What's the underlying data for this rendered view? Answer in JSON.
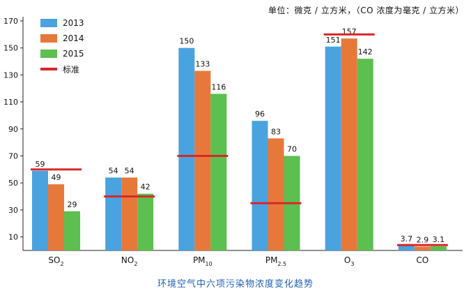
{
  "unit_note": "单位：微克 / 立方米，（CO 浓度为毫克 / 立方米）",
  "caption": "环境空气中六项污染物浓度变化趋势",
  "colors": {
    "2013": "#4aa3df",
    "2014": "#e6793a",
    "2015": "#5cbf4f",
    "standard": "#d9262b",
    "axis": "#222222"
  },
  "chart_data": {
    "type": "bar",
    "categories": [
      {
        "main": "SO",
        "sub": "2"
      },
      {
        "main": "NO",
        "sub": "2"
      },
      {
        "main": "PM",
        "sub": "10"
      },
      {
        "main": "PM",
        "sub": "2.5"
      },
      {
        "main": "O",
        "sub": "3"
      },
      {
        "main": "CO",
        "sub": ""
      }
    ],
    "series": [
      {
        "name": "2013",
        "values": [
          59,
          54,
          150,
          96,
          151,
          3.7
        ],
        "labels": [
          "59",
          "54",
          "150",
          "96",
          "151",
          "3.7"
        ]
      },
      {
        "name": "2014",
        "values": [
          49,
          54,
          133,
          83,
          157,
          2.9
        ],
        "labels": [
          "49",
          "54",
          "133",
          "83",
          "157",
          "2.9"
        ]
      },
      {
        "name": "2015",
        "values": [
          29,
          42,
          116,
          70,
          142,
          3.1
        ],
        "labels": [
          "29",
          "42",
          "116",
          "70",
          "142",
          "3.1"
        ]
      }
    ],
    "standard": {
      "name": "标准",
      "values": [
        60,
        40,
        70,
        35,
        160,
        4
      ]
    },
    "yticks": [
      10,
      30,
      50,
      70,
      90,
      110,
      130,
      150,
      170
    ],
    "ylim": [
      0,
      170
    ],
    "grid": false,
    "legend_position": "top-left"
  }
}
